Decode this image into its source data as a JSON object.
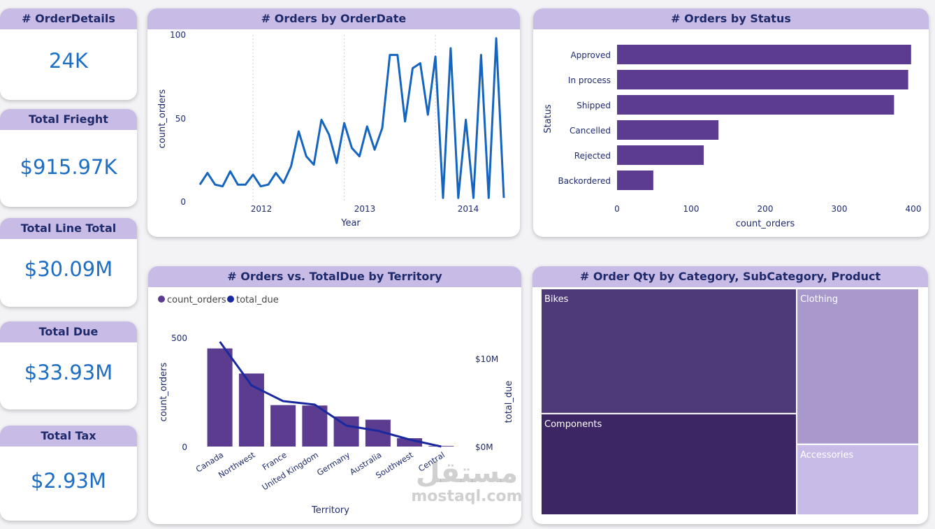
{
  "kpis": [
    {
      "title": "# OrderDetails",
      "value": "24K"
    },
    {
      "title": "Total Frieght",
      "value": "$915.97K"
    },
    {
      "title": "Total Line Total",
      "value": "$30.09M"
    },
    {
      "title": "Total Due",
      "value": "$33.93M"
    },
    {
      "title": "Total Tax",
      "value": "$2.93M"
    }
  ],
  "watermark": {
    "arabic": "مستقل",
    "latin": "mostaql.com"
  },
  "line_chart": {
    "title": "# Orders by OrderDate",
    "xlabel": "Year",
    "ylabel": "count_orders",
    "y_ticks": [
      "0",
      "50",
      "100"
    ],
    "x_ticks": [
      "2012",
      "2013",
      "2014"
    ]
  },
  "status_chart": {
    "title": "# Orders by Status",
    "xlabel": "count_orders",
    "ylabel": "Status",
    "x_ticks": [
      "0",
      "100",
      "200",
      "300",
      "400"
    ]
  },
  "territory_chart": {
    "title": "# Orders vs. TotalDue by Territory",
    "xlabel": "Territory",
    "ylabel_left": "count_orders",
    "ylabel_right": "total_due",
    "left_ticks": [
      "0",
      "500"
    ],
    "right_ticks": [
      "$0M",
      "$10M"
    ],
    "legend": [
      "count_orders",
      "total_due"
    ]
  },
  "treemap": {
    "title": "# Order Qty by Category, SubCategory, Product"
  },
  "colors": {
    "header": "#c8bbe6",
    "kpi_value": "#1e6fc4",
    "line": "#1565c0",
    "bar": "#5b3c91",
    "total_due_line": "#1a2a9e"
  },
  "chart_data": [
    {
      "type": "line",
      "title": "# Orders by OrderDate",
      "xlabel": "Year",
      "ylabel": "count_orders",
      "ylim": [
        0,
        100
      ],
      "x": [
        "2011-06",
        "2011-07",
        "2011-08",
        "2011-09",
        "2011-10",
        "2011-11",
        "2011-12",
        "2012-01",
        "2012-02",
        "2012-03",
        "2012-04",
        "2012-05",
        "2012-06",
        "2012-07",
        "2012-08",
        "2012-09",
        "2012-10",
        "2012-11",
        "2012-12",
        "2013-01",
        "2013-02",
        "2013-03",
        "2013-04",
        "2013-05",
        "2013-06",
        "2013-07",
        "2013-08",
        "2013-09",
        "2013-10",
        "2013-11",
        "2013-12",
        "2014-01",
        "2014-02",
        "2014-03",
        "2014-04",
        "2014-05",
        "2014-06",
        "2014-07",
        "2014-08",
        "2014-09",
        "2014-10"
      ],
      "series": [
        {
          "values": [
            10,
            17,
            10,
            9,
            18,
            10,
            10,
            16,
            9,
            10,
            17,
            11,
            21,
            42,
            27,
            22,
            49,
            40,
            23,
            47,
            32,
            27,
            45,
            31,
            44,
            88,
            88,
            48,
            80,
            83,
            52,
            87,
            2,
            92,
            2,
            49,
            2,
            88,
            2,
            98,
            2
          ]
        }
      ]
    },
    {
      "type": "bar",
      "orientation": "horizontal",
      "title": "# Orders by Status",
      "xlabel": "count_orders",
      "ylabel": "Status",
      "xlim": [
        0,
        400
      ],
      "categories": [
        "Approved",
        "In process",
        "Shipped",
        "Cancelled",
        "Rejected",
        "Backordered"
      ],
      "values": [
        397,
        393,
        374,
        137,
        117,
        49
      ]
    },
    {
      "type": "bar",
      "title": "# Orders vs. TotalDue by Territory",
      "xlabel": "Territory",
      "categories": [
        "Canada",
        "Northwest",
        "France",
        "United Kingdom",
        "Germany",
        "Australia",
        "Southwest",
        "Central"
      ],
      "series": [
        {
          "name": "count_orders",
          "type": "bar",
          "axis": "left",
          "values": [
            450,
            335,
            190,
            188,
            138,
            123,
            38,
            3
          ]
        },
        {
          "name": "total_due",
          "type": "line",
          "axis": "right",
          "values": [
            12000000,
            7000000,
            5200000,
            4800000,
            2400000,
            1800000,
            800000,
            0
          ]
        }
      ],
      "ylim_left": [
        0,
        500
      ],
      "ylim_right": [
        0,
        10000000
      ]
    },
    {
      "type": "treemap",
      "title": "# Order Qty by Category, SubCategory, Product",
      "categories": [
        "Bikes",
        "Components",
        "Clothing",
        "Accessories"
      ],
      "values": [
        37,
        30,
        22,
        10
      ]
    }
  ]
}
